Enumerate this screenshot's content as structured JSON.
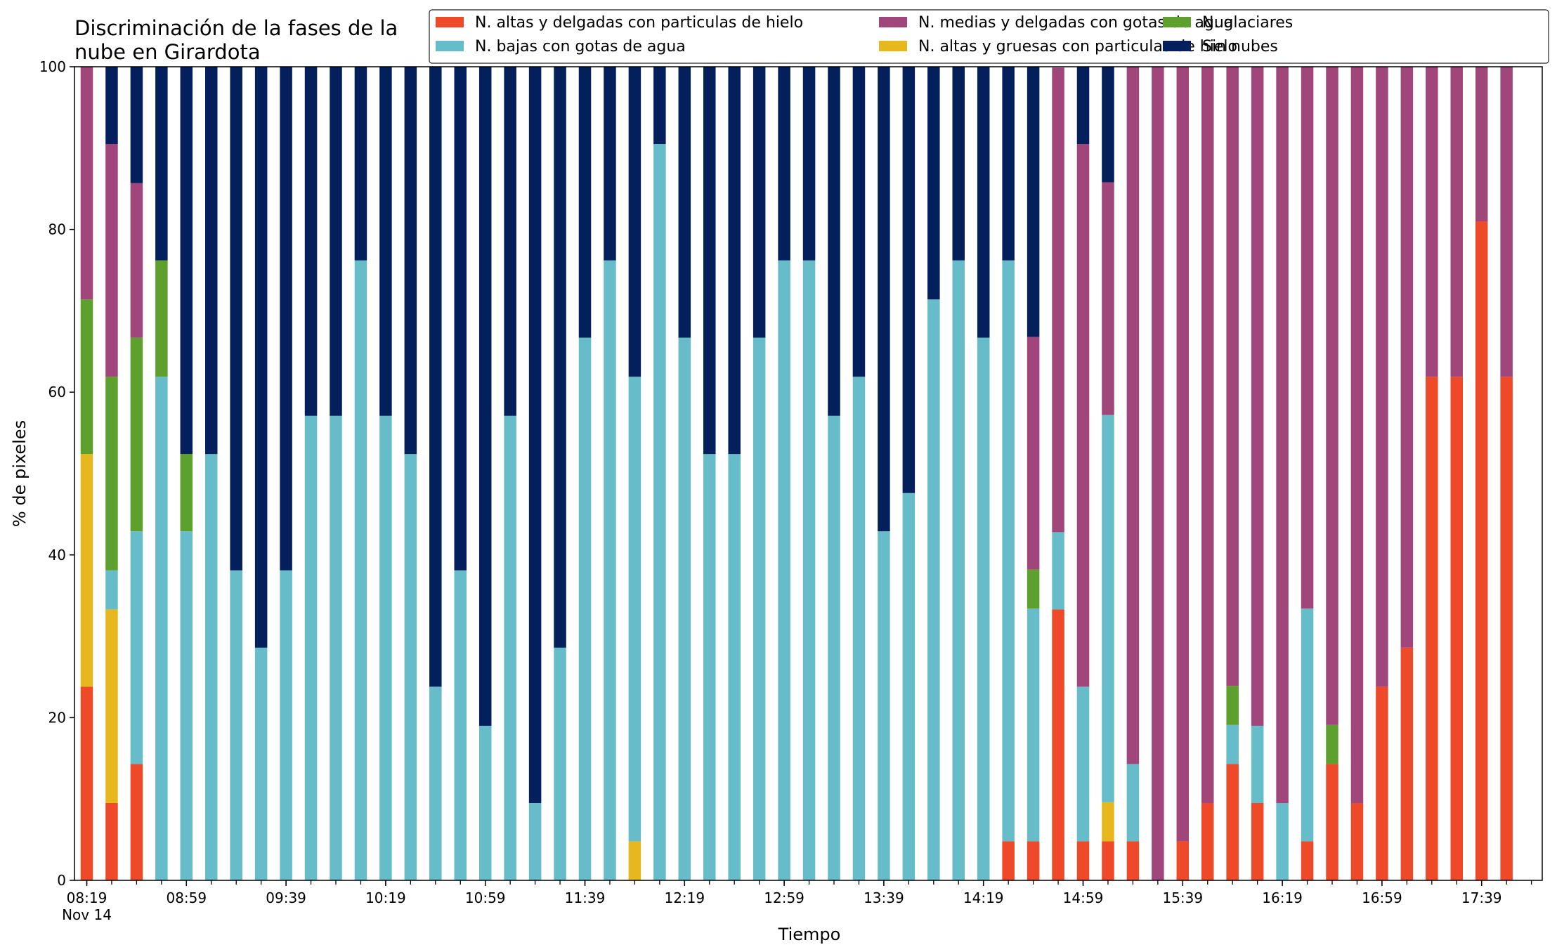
{
  "chart_data": {
    "type": "bar",
    "stacked": true,
    "title_lines": [
      "Discriminación de la fases de la",
      "nube en Girardota"
    ],
    "xlabel": "Tiempo",
    "ylabel": "% de pixeles",
    "ylim": [
      0,
      100
    ],
    "yticks": [
      0,
      20,
      40,
      60,
      80,
      100
    ],
    "xtick_labels": [
      {
        "index": 0,
        "label": "08:19",
        "sub": "Nov 14"
      },
      {
        "index": 4,
        "label": "08:59"
      },
      {
        "index": 8,
        "label": "09:39"
      },
      {
        "index": 12,
        "label": "10:19"
      },
      {
        "index": 16,
        "label": "10:59"
      },
      {
        "index": 20,
        "label": "11:39"
      },
      {
        "index": 24,
        "label": "12:19"
      },
      {
        "index": 28,
        "label": "12:59"
      },
      {
        "index": 32,
        "label": "13:39"
      },
      {
        "index": 36,
        "label": "14:19"
      },
      {
        "index": 40,
        "label": "14:59"
      },
      {
        "index": 44,
        "label": "15:39"
      },
      {
        "index": 48,
        "label": "16:19"
      },
      {
        "index": 52,
        "label": "16:59"
      },
      {
        "index": 56,
        "label": "17:39"
      }
    ],
    "bar_count": 58,
    "legend_position": "top-right",
    "series": [
      {
        "name": "N. altas y delgadas con particulas de hielo",
        "color": "#ee4a2a",
        "values": [
          23.8,
          9.5,
          14.3,
          0,
          0,
          0,
          0,
          0,
          0,
          0,
          0,
          0,
          0,
          0,
          0,
          0,
          0,
          0,
          0,
          0,
          0,
          0,
          0,
          0,
          0,
          0,
          0,
          0,
          0,
          0,
          0,
          0,
          0,
          0,
          0,
          0,
          0,
          4.8,
          4.8,
          33.3,
          4.8,
          4.8,
          4.8,
          0,
          4.8,
          9.5,
          14.3,
          9.5,
          0,
          4.8,
          14.3,
          9.5,
          23.8,
          28.6,
          61.9,
          61.9,
          81.0,
          61.9
        ]
      },
      {
        "name": "N. altas y gruesas con particulas de hielo",
        "color": "#e6b81e",
        "values": [
          28.6,
          23.8,
          0,
          0,
          0,
          0,
          0,
          0,
          0,
          0,
          0,
          0,
          0,
          0,
          0,
          0,
          0,
          0,
          0,
          0,
          0,
          0,
          4.8,
          0,
          0,
          0,
          0,
          0,
          0,
          0,
          0,
          0,
          0,
          0,
          0,
          0,
          0,
          0,
          0,
          0,
          0,
          4.8,
          0,
          0,
          0,
          0,
          0,
          0,
          0,
          0,
          0,
          0,
          0,
          0,
          0,
          0,
          0,
          0
        ]
      },
      {
        "name": "N. bajas con gotas de agua",
        "color": "#66bcc8",
        "values": [
          0,
          4.8,
          28.6,
          61.9,
          42.9,
          52.4,
          38.1,
          28.6,
          38.1,
          57.1,
          57.1,
          76.2,
          57.1,
          52.4,
          23.8,
          38.1,
          19.0,
          57.1,
          9.5,
          28.6,
          66.7,
          76.2,
          57.1,
          90.5,
          66.7,
          52.4,
          52.4,
          66.7,
          76.2,
          76.2,
          57.1,
          61.9,
          42.9,
          47.6,
          71.4,
          76.2,
          66.7,
          71.4,
          28.6,
          9.5,
          19.0,
          47.6,
          9.5,
          0,
          0,
          0,
          4.8,
          9.5,
          9.5,
          28.6,
          0,
          0,
          0,
          0,
          0,
          0,
          0,
          0
        ]
      },
      {
        "name": "N. glaciares",
        "color": "#5ea02e",
        "values": [
          19.0,
          23.8,
          23.8,
          14.3,
          9.5,
          0,
          0,
          0,
          0,
          0,
          0,
          0,
          0,
          0,
          0,
          0,
          0,
          0,
          0,
          0,
          0,
          0,
          0,
          0,
          0,
          0,
          0,
          0,
          0,
          0,
          0,
          0,
          0,
          0,
          0,
          0,
          0,
          0,
          4.8,
          0,
          0,
          0,
          0,
          0,
          0,
          0,
          4.8,
          0,
          0,
          0,
          4.8,
          0,
          0,
          0,
          0,
          0,
          0,
          0
        ]
      },
      {
        "name": "N. medias y delgadas con gotas de agua",
        "color": "#a0467a",
        "values": [
          28.6,
          28.6,
          19.0,
          0,
          0,
          0,
          0,
          0,
          0,
          0,
          0,
          0,
          0,
          0,
          0,
          0,
          0,
          0,
          0,
          0,
          0,
          0,
          0,
          0,
          0,
          0,
          0,
          0,
          0,
          0,
          0,
          0,
          0,
          0,
          0,
          0,
          0,
          0,
          28.6,
          57.1,
          66.7,
          28.6,
          85.7,
          100,
          95.2,
          90.5,
          76.2,
          81.0,
          90.5,
          66.7,
          81.0,
          90.5,
          76.2,
          71.4,
          38.1,
          38.1,
          19.0,
          38.1
        ]
      },
      {
        "name": "Sin nubes",
        "color": "#031f5c",
        "values": [
          0,
          9.5,
          14.3,
          23.8,
          47.6,
          47.6,
          61.9,
          71.4,
          61.9,
          42.9,
          42.9,
          23.8,
          42.9,
          47.6,
          76.2,
          61.9,
          81.0,
          42.9,
          90.5,
          71.4,
          33.3,
          23.8,
          38.1,
          9.5,
          33.3,
          47.6,
          47.6,
          33.3,
          23.8,
          23.8,
          42.9,
          38.1,
          57.1,
          52.4,
          28.6,
          23.8,
          33.3,
          23.8,
          33.3,
          0,
          9.5,
          14.3,
          0,
          0,
          0,
          0,
          0,
          0,
          0,
          0,
          0,
          0,
          0,
          0,
          0,
          0,
          0,
          0
        ]
      }
    ],
    "legend_order": [
      0,
      2,
      4,
      1,
      3,
      5
    ]
  }
}
